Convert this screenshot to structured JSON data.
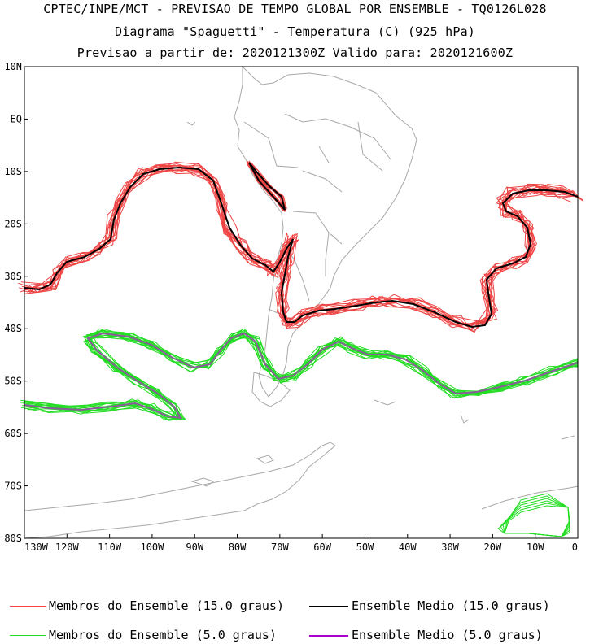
{
  "header": {
    "line1": "CPTEC/INPE/MCT - PREVISAO DE TEMPO GLOBAL POR ENSEMBLE - TQ0126L028",
    "line2": "Diagrama \"Spaguetti\" - Temperatura (C) (925 hPa)",
    "line3": "Previsao a partir de: 2020121300Z  Valido para: 2020121600Z"
  },
  "map": {
    "lat_labels": [
      "10N",
      "EQ",
      "10S",
      "20S",
      "30S",
      "40S",
      "50S",
      "60S",
      "70S",
      "80S"
    ],
    "lon_labels": [
      "130W",
      "120W",
      "110W",
      "100W",
      "90W",
      "80W",
      "70W",
      "60W",
      "50W",
      "40W",
      "30W",
      "20W",
      "10W",
      "0"
    ]
  },
  "legend": {
    "member_15": "Membros do Ensemble (15.0 graus)",
    "mean_15": "Ensemble Medio (15.0 graus)",
    "member_5": "Membros do Ensemble (5.0 graus)",
    "mean_5": "Ensemble Medio (5.0 graus)"
  },
  "colors": {
    "member_15": "#ee4444",
    "mean_15": "#000000",
    "member_5": "#22dd22",
    "mean_5": "#aa00cc",
    "coast": "#a8a8a8"
  }
}
